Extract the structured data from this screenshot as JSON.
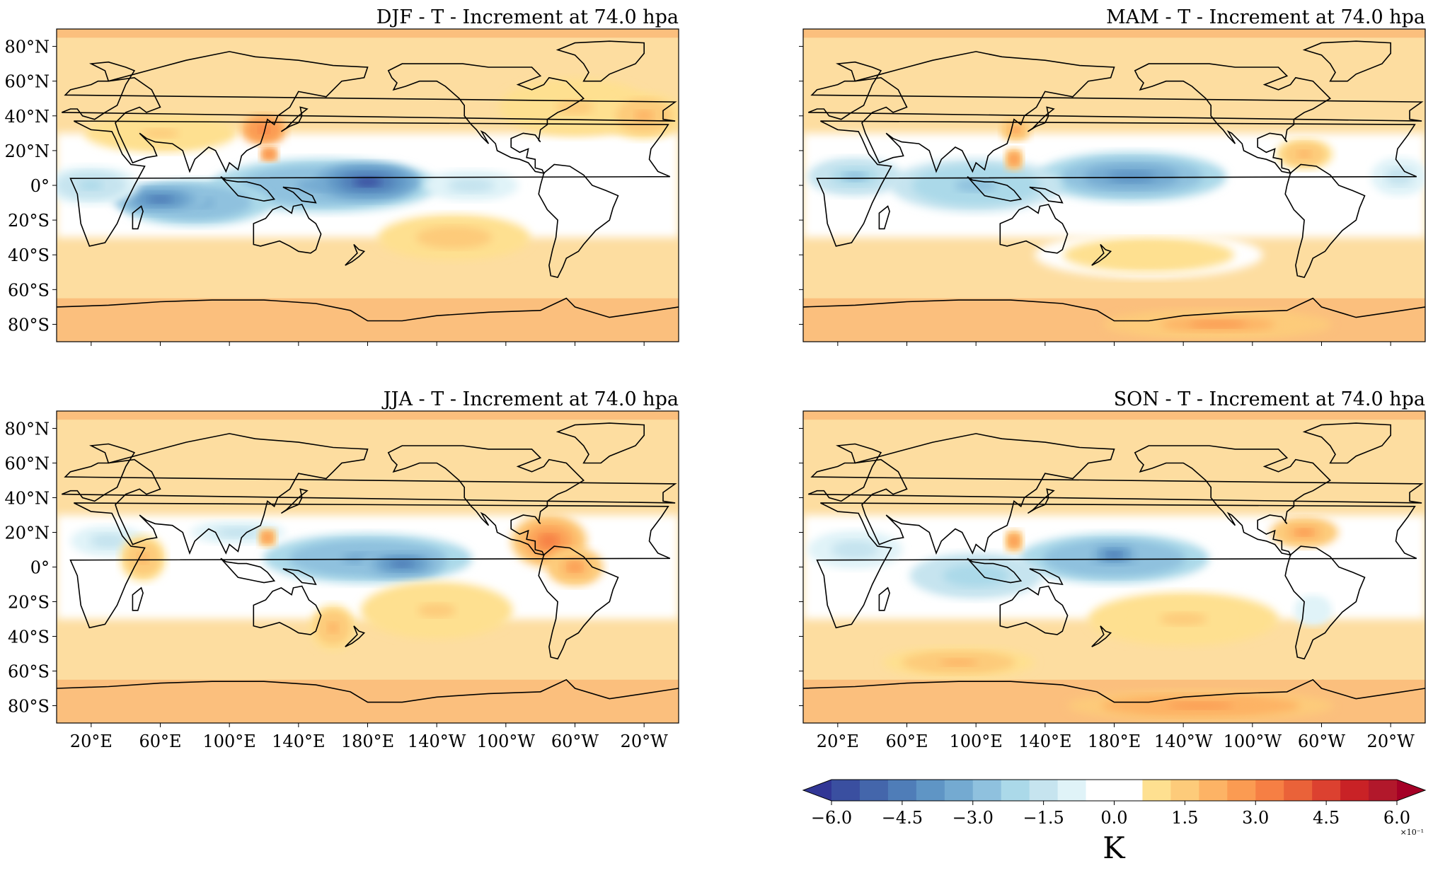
{
  "figure": {
    "panels": [
      {
        "id": "djf",
        "title": "DJF - T - Increment at 74.0 hpa",
        "show_y_labels": true,
        "show_x_labels": false,
        "features": [
          {
            "lon": 155,
            "lat": 0,
            "rx": 60,
            "ry": 14,
            "v": -0.35
          },
          {
            "lon": 180,
            "lat": 2,
            "rx": 28,
            "ry": 10,
            "v": -0.55
          },
          {
            "lon": 80,
            "lat": -10,
            "rx": 40,
            "ry": 12,
            "v": -0.35
          },
          {
            "lon": 60,
            "lat": -8,
            "rx": 25,
            "ry": 8,
            "v": -0.45
          },
          {
            "lon": 20,
            "lat": 0,
            "rx": 25,
            "ry": 10,
            "v": -0.2
          },
          {
            "lon": 240,
            "lat": 0,
            "rx": 25,
            "ry": 8,
            "v": -0.15
          },
          {
            "lon": 120,
            "lat": 32,
            "rx": 12,
            "ry": 8,
            "v": 0.35
          },
          {
            "lon": 123,
            "lat": 18,
            "rx": 5,
            "ry": 4,
            "v": 0.35
          },
          {
            "lon": 230,
            "lat": -30,
            "rx": 40,
            "ry": 12,
            "v": 0.15
          },
          {
            "lon": 300,
            "lat": 45,
            "rx": 40,
            "ry": 15,
            "v": 0.12
          },
          {
            "lon": 60,
            "lat": 30,
            "rx": 40,
            "ry": 10,
            "v": 0.12
          },
          {
            "lon": 340,
            "lat": 40,
            "rx": 20,
            "ry": 12,
            "v": 0.2
          }
        ]
      },
      {
        "id": "mam",
        "title": "MAM - T - Increment at 74.0 hpa",
        "show_y_labels": false,
        "show_x_labels": false,
        "features": [
          {
            "lon": 190,
            "lat": 5,
            "rx": 50,
            "ry": 13,
            "v": -0.38
          },
          {
            "lon": 100,
            "lat": 0,
            "rx": 45,
            "ry": 14,
            "v": -0.28
          },
          {
            "lon": 30,
            "lat": 5,
            "rx": 25,
            "ry": 10,
            "v": -0.25
          },
          {
            "lon": 345,
            "lat": 5,
            "rx": 15,
            "ry": 10,
            "v": -0.15
          },
          {
            "lon": 122,
            "lat": 15,
            "rx": 5,
            "ry": 6,
            "v": 0.3
          },
          {
            "lon": 123,
            "lat": 32,
            "rx": 8,
            "ry": 6,
            "v": 0.25
          },
          {
            "lon": 290,
            "lat": 18,
            "rx": 15,
            "ry": 8,
            "v": 0.2
          },
          {
            "lon": 240,
            "lat": -80,
            "rx": 60,
            "ry": 8,
            "v": 0.25
          },
          {
            "lon": 200,
            "lat": -40,
            "rx": 60,
            "ry": 12,
            "v": 0.1
          }
        ]
      },
      {
        "id": "jja",
        "title": "JJA - T - Increment at 74.0 hpa",
        "show_y_labels": true,
        "show_x_labels": true,
        "features": [
          {
            "lon": 180,
            "lat": 5,
            "rx": 55,
            "ry": 13,
            "v": -0.35
          },
          {
            "lon": 200,
            "lat": 2,
            "rx": 22,
            "ry": 8,
            "v": -0.45
          },
          {
            "lon": 30,
            "lat": 15,
            "rx": 20,
            "ry": 8,
            "v": -0.15
          },
          {
            "lon": 105,
            "lat": 20,
            "rx": 25,
            "ry": 6,
            "v": -0.15
          },
          {
            "lon": 285,
            "lat": 15,
            "rx": 20,
            "ry": 14,
            "v": 0.32
          },
          {
            "lon": 300,
            "lat": 0,
            "rx": 15,
            "ry": 10,
            "v": 0.25
          },
          {
            "lon": 122,
            "lat": 17,
            "rx": 5,
            "ry": 5,
            "v": 0.3
          },
          {
            "lon": 50,
            "lat": 5,
            "rx": 12,
            "ry": 12,
            "v": 0.2
          },
          {
            "lon": 160,
            "lat": -35,
            "rx": 12,
            "ry": 12,
            "v": 0.2
          },
          {
            "lon": 220,
            "lat": -25,
            "rx": 40,
            "ry": 15,
            "v": 0.12
          }
        ]
      },
      {
        "id": "son",
        "title": "SON - T - Increment at 74.0 hpa",
        "show_y_labels": false,
        "show_x_labels": true,
        "features": [
          {
            "lon": 180,
            "lat": 5,
            "rx": 50,
            "ry": 13,
            "v": -0.35
          },
          {
            "lon": 180,
            "lat": 7,
            "rx": 15,
            "ry": 7,
            "v": -0.48
          },
          {
            "lon": 100,
            "lat": -5,
            "rx": 35,
            "ry": 12,
            "v": -0.22
          },
          {
            "lon": 30,
            "lat": 10,
            "rx": 25,
            "ry": 10,
            "v": -0.15
          },
          {
            "lon": 295,
            "lat": -25,
            "rx": 10,
            "ry": 8,
            "v": -0.12
          },
          {
            "lon": 122,
            "lat": 15,
            "rx": 5,
            "ry": 6,
            "v": 0.3
          },
          {
            "lon": 290,
            "lat": 20,
            "rx": 18,
            "ry": 8,
            "v": 0.25
          },
          {
            "lon": 230,
            "lat": -80,
            "rx": 70,
            "ry": 8,
            "v": 0.28
          },
          {
            "lon": 90,
            "lat": -55,
            "rx": 40,
            "ry": 8,
            "v": 0.2
          },
          {
            "lon": 220,
            "lat": -30,
            "rx": 50,
            "ry": 14,
            "v": 0.12
          }
        ]
      }
    ],
    "x_ticks": [
      "20°E",
      "60°E",
      "100°E",
      "140°E",
      "180°E",
      "140°W",
      "100°W",
      "60°W",
      "20°W"
    ],
    "x_tick_lons": [
      20,
      60,
      100,
      140,
      180,
      220,
      260,
      300,
      340
    ],
    "lon_range": [
      0,
      360
    ],
    "y_ticks": [
      "80°N",
      "60°N",
      "40°N",
      "20°N",
      "0°",
      "20°S",
      "40°S",
      "60°S",
      "80°S"
    ],
    "y_tick_lats": [
      80,
      60,
      40,
      20,
      0,
      -20,
      -40,
      -60,
      -80
    ],
    "lat_range": [
      -90,
      90
    ],
    "colorbar": {
      "label": "K",
      "exponent": "×10⁻¹",
      "extend": "both",
      "range": [
        -0.6,
        0.6
      ],
      "step": 0.05,
      "tick_labels": [
        "−6.0",
        "−4.5",
        "−3.0",
        "−1.5",
        "0.0",
        "1.5",
        "3.0",
        "4.5",
        "6.0"
      ],
      "tick_values": [
        -0.6,
        -0.45,
        -0.3,
        -0.15,
        0.0,
        0.15,
        0.3,
        0.45,
        0.6
      ],
      "colormap": "RdYlBu_r",
      "colors": [
        "#313695",
        "#3a4fa0",
        "#4466ab",
        "#4f7db8",
        "#5f95c5",
        "#74aad1",
        "#8fc1de",
        "#abd9e9",
        "#c6e4ef",
        "#e0f3f8",
        "#ffffff",
        "#ffffff",
        "#fee090",
        "#fdcb7a",
        "#fdb365",
        "#fb9b52",
        "#f67f44",
        "#ea6239",
        "#dc4130",
        "#c92226",
        "#b2182b",
        "#a50026"
      ]
    }
  }
}
